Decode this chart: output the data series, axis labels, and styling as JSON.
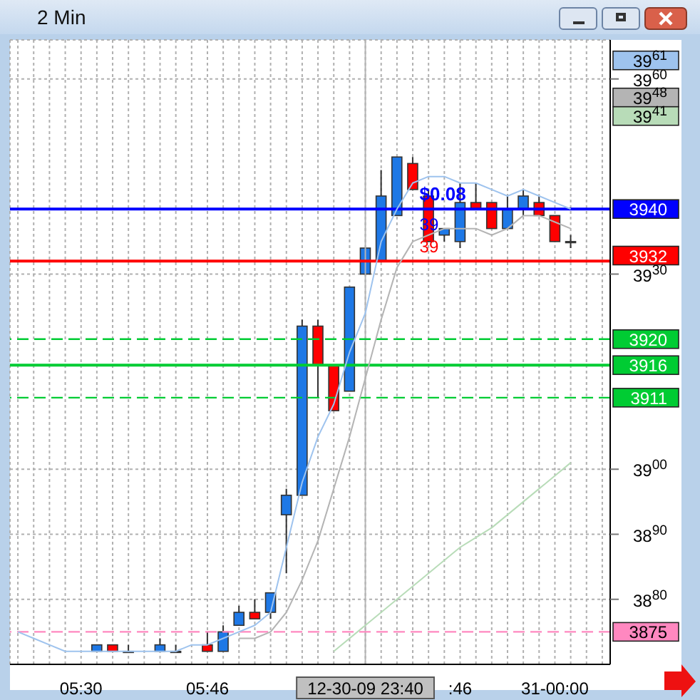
{
  "chart_data": {
    "type": "candlestick",
    "title": "2 Min",
    "categories": [
      null,
      null,
      null,
      null,
      "05:30",
      null,
      null,
      null,
      null,
      null,
      null,
      null,
      "05:46",
      null,
      null,
      null,
      null,
      null,
      null,
      null,
      null,
      null,
      "12-30-09 23:40",
      null,
      null,
      null,
      null,
      null,
      ":46",
      null,
      null,
      null,
      null,
      null,
      "31-00:00",
      null,
      null,
      null
    ],
    "ohlc": [
      null,
      null,
      null,
      null,
      null,
      [
        3872,
        3873,
        3872,
        3873
      ],
      [
        3873,
        3873,
        3872,
        3872
      ],
      [
        3872,
        3873,
        3872,
        3872
      ],
      null,
      [
        3872,
        3874,
        3872,
        3873
      ],
      [
        3872,
        3873,
        3872,
        3872
      ],
      null,
      [
        3873,
        3875,
        3872,
        3872
      ],
      [
        3872,
        3876,
        3872,
        3875
      ],
      [
        3876,
        3879,
        3876,
        3878
      ],
      [
        3878,
        3880,
        3877,
        3877
      ],
      [
        3878,
        3881,
        3877,
        3881
      ],
      [
        3893,
        3897,
        3884,
        3896
      ],
      [
        3896,
        3923,
        3896,
        3922
      ],
      [
        3922,
        3923,
        3911,
        3916
      ],
      [
        3916,
        3916,
        3909,
        3909
      ],
      [
        3912,
        3928,
        3912,
        3928
      ],
      [
        3930,
        3934,
        3930,
        3934
      ],
      [
        3932,
        3946,
        3932,
        3942
      ],
      [
        3939,
        3948,
        3939,
        3948
      ],
      [
        3947,
        3948,
        3943,
        3943
      ],
      [
        3942,
        3943,
        3935,
        3935
      ],
      [
        3936,
        3937,
        3935,
        3937
      ],
      [
        3935,
        3944,
        3934,
        3941
      ],
      [
        3941,
        3944,
        3940,
        3940
      ],
      [
        3941,
        3941,
        3937,
        3937
      ],
      [
        3937,
        3942,
        3937,
        3940
      ],
      [
        3940,
        3943,
        3939,
        3942
      ],
      [
        3941,
        3942,
        3939,
        3939
      ],
      [
        3939,
        3939,
        3935,
        3935
      ],
      [
        3935,
        3936,
        3934,
        3935
      ],
      null,
      null
    ],
    "colors": [
      null,
      null,
      null,
      null,
      null,
      "#1e78e6",
      "#ff0000",
      "#1e78e6",
      null,
      "#1e78e6",
      "#1e78e6",
      null,
      "#ff0000",
      "#1e78e6",
      "#1e78e6",
      "#ff0000",
      "#1e78e6",
      "#1e78e6",
      "#1e78e6",
      "#ff0000",
      "#ff0000",
      "#1e78e6",
      "#1e78e6",
      "#1e78e6",
      "#1e78e6",
      "#ff0000",
      "#ff0000",
      "#1e78e6",
      "#1e78e6",
      "#ff0000",
      "#ff0000",
      "#1e78e6",
      "#1e78e6",
      "#ff0000",
      "#ff0000",
      "#1e78e6",
      null,
      null
    ],
    "series": [
      {
        "type": "line",
        "color": "#9ec3ee",
        "values": [
          3875,
          3874,
          3873,
          3872,
          3872,
          3872,
          3872,
          3872,
          3872,
          3872,
          3872,
          3873,
          3873,
          3874,
          3875,
          3876,
          3878,
          3888,
          3898,
          3905,
          3910,
          3918,
          3924,
          3935,
          3940,
          3944,
          3945,
          3945,
          3944,
          3944,
          3943,
          3942,
          3943,
          3942,
          3941,
          3940,
          null,
          null
        ]
      },
      {
        "type": "line",
        "color": "#b4b4b4",
        "values": [
          null,
          null,
          null,
          null,
          null,
          null,
          null,
          null,
          null,
          null,
          null,
          null,
          null,
          null,
          3874,
          3874,
          3875,
          3878,
          3883,
          3889,
          3897,
          3905,
          3914,
          3923,
          3931,
          3935,
          3936,
          3937,
          3937,
          3937,
          3936,
          3937,
          3939,
          3939,
          3938,
          3937,
          null,
          null
        ]
      },
      {
        "type": "line",
        "color": "#b8dcb8",
        "values": [
          null,
          null,
          null,
          null,
          null,
          null,
          null,
          null,
          null,
          null,
          null,
          null,
          null,
          null,
          null,
          null,
          null,
          null,
          null,
          null,
          3872,
          null,
          3876,
          null,
          3880,
          null,
          3884,
          null,
          3888,
          null,
          3891,
          null,
          3895,
          3897,
          null,
          3901,
          null,
          null
        ]
      }
    ],
    "ylim": [
      3870,
      3966
    ],
    "yticks": [
      3880,
      3890,
      3900,
      3930,
      3960
    ],
    "grid": true,
    "ref_lines": [
      {
        "axis": "y",
        "value": 3940,
        "label": "3940",
        "color": "#0000ff"
      },
      {
        "axis": "y",
        "value": 3932,
        "label": "3932",
        "color": "#ff0000"
      },
      {
        "axis": "y",
        "value": 3920,
        "label": "3920",
        "color": "#00cc33",
        "line_style": "dashed"
      },
      {
        "axis": "y",
        "value": 3916,
        "label": "3916",
        "color": "#00cc33"
      },
      {
        "axis": "y",
        "value": 3911,
        "label": "3911",
        "color": "#00cc33",
        "line_style": "dashed"
      },
      {
        "axis": "y",
        "value": 3875,
        "label": "3875",
        "color": "#ff88c0",
        "line_style": "dashed"
      },
      {
        "axis": "x",
        "value": "12-30-09 23:40",
        "color": "#b4b4b4"
      }
    ],
    "annotations": [
      "39$^{61}$",
      "39$^{48}$",
      "39$^{41}$",
      "$0.08",
      "39",
      "39"
    ]
  }
}
